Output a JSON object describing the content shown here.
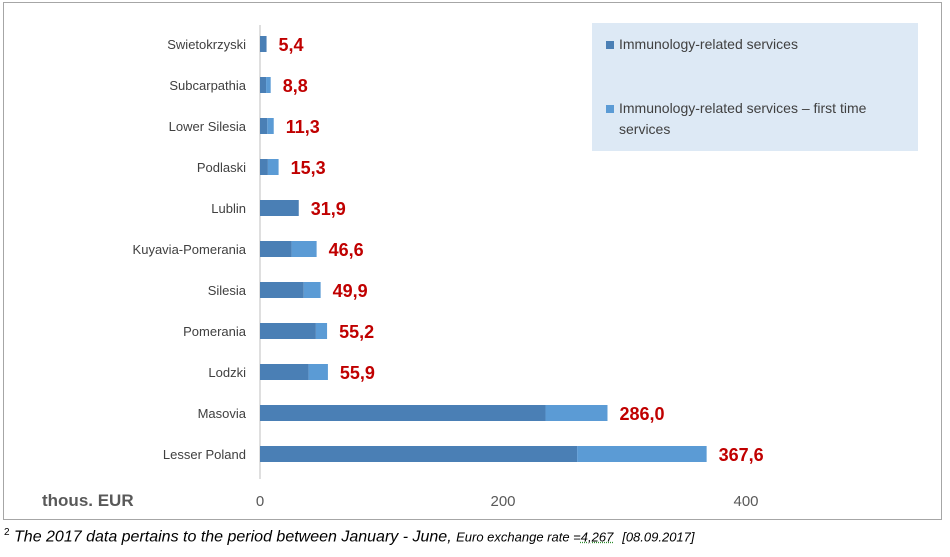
{
  "chart_data": {
    "type": "bar",
    "orientation": "horizontal",
    "stacked": true,
    "categories": [
      "Swietokrzyski",
      "Subcarpathia",
      "Lower Silesia",
      "Podlaski",
      "Lublin",
      "Kuyavia-Pomerania",
      "Silesia",
      "Pomerania",
      "Lodzki",
      "Masovia",
      "Lesser Poland"
    ],
    "series": [
      {
        "name": "Immunology-related services",
        "color": "#4a7fb5",
        "values": [
          5.4,
          5.0,
          6.0,
          6.5,
          31.9,
          26.0,
          36.0,
          46.0,
          40.0,
          235.0,
          261.0
        ]
      },
      {
        "name": "Immunology-related services – first time services",
        "color": "#5b9bd5",
        "values": [
          0.0,
          3.8,
          5.3,
          8.8,
          0.0,
          20.6,
          13.9,
          9.2,
          15.9,
          51.0,
          106.6
        ]
      }
    ],
    "totals": [
      "5,4",
      "8,8",
      "11,3",
      "15,3",
      "31,9",
      "46,6",
      "49,9",
      "55,2",
      "55,9",
      "286,0",
      "367,6"
    ],
    "xlim": [
      0,
      400
    ],
    "xticks": [
      "0",
      "200",
      "400"
    ],
    "xlabel": "thous. EUR",
    "ylabel": "",
    "legend_position": "top-right",
    "grid": false
  },
  "footnote": {
    "marker": "2",
    "main": "The 2017 data pertains to the period between January - June,",
    "rate_prefix": "Euro exchange rate =",
    "rate_value": "4,267",
    "rate_date": "[08.09.2017]"
  }
}
